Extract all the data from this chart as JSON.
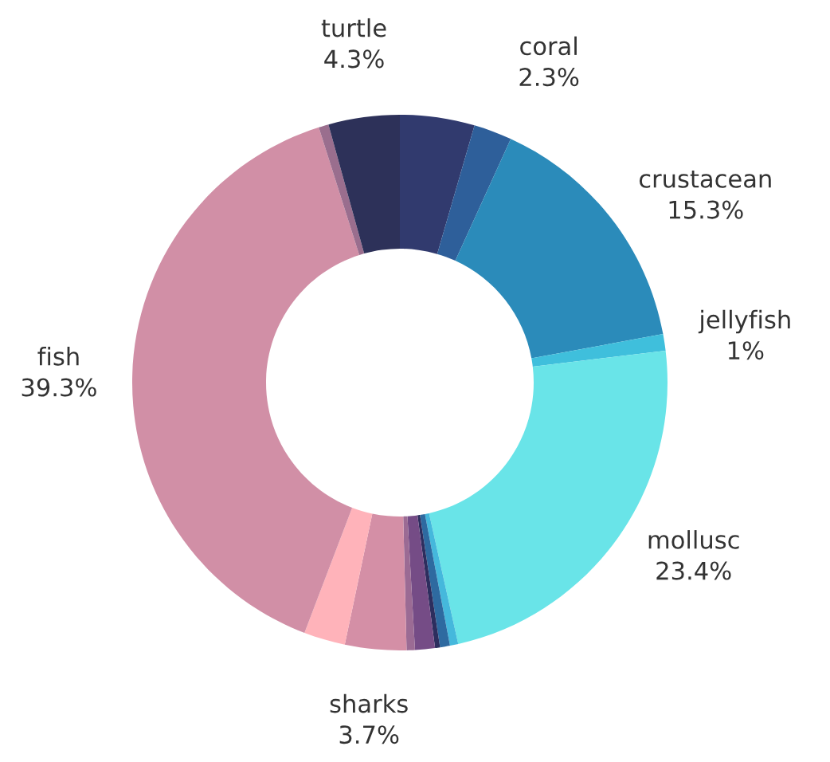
{
  "chart_data": {
    "type": "donut",
    "categories": [
      null,
      "coral",
      "crustacean",
      "jellyfish",
      "mollusc",
      null,
      null,
      null,
      null,
      null,
      "sharks",
      null,
      "fish",
      null,
      "turtle"
    ],
    "values": [
      4.5,
      2.3,
      15.3,
      1,
      23.4,
      0.5,
      0.6,
      0.3,
      1.2,
      0.5,
      3.7,
      2.5,
      39.3,
      0.6,
      4.3
    ],
    "value_labels": [
      null,
      "2.3%",
      "15.3%",
      "1%",
      "23.4%",
      null,
      null,
      null,
      null,
      null,
      "3.7%",
      null,
      "39.3%",
      null,
      "4.3%"
    ],
    "colors": [
      "#313a6e",
      "#2e5f9a",
      "#2b8bba",
      "#3fbfdc",
      "#69e4e8",
      "#45b8dc",
      "#2e6aa0",
      "#2d2e5e",
      "#754c86",
      "#9b6b94",
      "#d48fa6",
      "#ffb3ba",
      "#d18fa6",
      "#9a6e8e",
      "#2d3159"
    ],
    "legend": false
  }
}
